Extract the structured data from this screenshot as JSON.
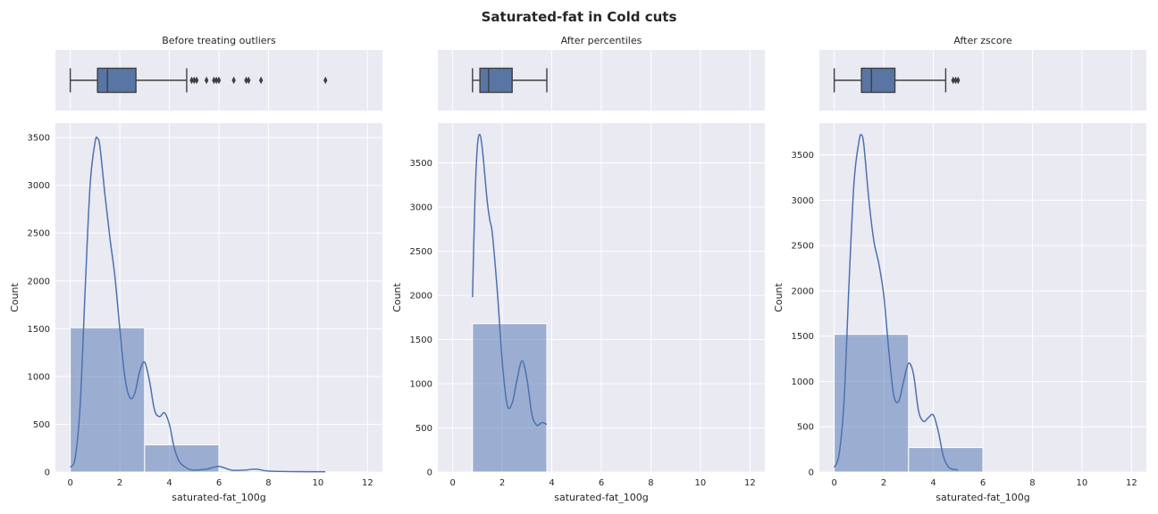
{
  "title": "Saturated-fat in Cold cuts",
  "colors": {
    "bar_fill": "#4c72b0",
    "bar_edge": "#ffffff",
    "kde_line": "#4c72b0",
    "box_fill": "#5975a4",
    "box_edge": "#3f3f3f",
    "panel_bg": "#eaeaf2",
    "grid": "#ffffff"
  },
  "chart_data": [
    {
      "type": "histogram",
      "title": "Before treating outliers",
      "xlabel": "saturated-fat_100g",
      "ylabel": "Count",
      "xlim": [
        -0.6,
        12.6
      ],
      "ylim": [
        0,
        3650
      ],
      "xticks": [
        0,
        2,
        4,
        6,
        8,
        10,
        12
      ],
      "yticks": [
        0,
        500,
        1000,
        1500,
        2000,
        2500,
        3000,
        3500
      ],
      "bins": [
        {
          "x0": 0,
          "x1": 3,
          "count": 1510
        },
        {
          "x0": 3,
          "x1": 6,
          "count": 285
        },
        {
          "x0": 6,
          "x1": 9,
          "count": 12
        },
        {
          "x0": 9,
          "x1": 12,
          "count": 2
        }
      ],
      "kde": {
        "x": [
          0,
          0.2,
          0.4,
          0.6,
          0.8,
          1.0,
          1.1,
          1.2,
          1.4,
          1.6,
          1.8,
          2.0,
          2.2,
          2.4,
          2.6,
          2.8,
          3.0,
          3.2,
          3.4,
          3.6,
          3.8,
          4.0,
          4.2,
          4.4,
          4.6,
          4.8,
          5.0,
          5.5,
          6.0,
          6.5,
          7.0,
          7.5,
          8.0,
          9.0,
          10.3
        ],
        "y": [
          50,
          150,
          700,
          1900,
          3000,
          3450,
          3490,
          3400,
          2900,
          2450,
          2050,
          1500,
          1000,
          780,
          820,
          1050,
          1150,
          950,
          650,
          580,
          620,
          500,
          250,
          110,
          60,
          30,
          20,
          30,
          60,
          20,
          20,
          30,
          10,
          5,
          3
        ]
      },
      "boxplot": {
        "whisker_low": 0,
        "q1": 1.1,
        "median": 1.5,
        "q3": 2.65,
        "whisker_high": 4.7,
        "outliers": [
          4.9,
          5.0,
          5.1,
          5.5,
          5.8,
          5.9,
          6.0,
          6.6,
          7.1,
          7.2,
          7.7,
          10.3
        ]
      }
    },
    {
      "type": "histogram",
      "title": "After percentiles",
      "xlabel": "saturated-fat_100g",
      "ylabel": "Count",
      "xlim": [
        -0.6,
        12.6
      ],
      "ylim": [
        0,
        3950
      ],
      "xticks": [
        0,
        2,
        4,
        6,
        8,
        10,
        12
      ],
      "yticks": [
        0,
        500,
        1000,
        1500,
        2000,
        2500,
        3000,
        3500
      ],
      "bins": [
        {
          "x0": 0.8,
          "x1": 3.8,
          "count": 1680
        }
      ],
      "kde": {
        "x": [
          0.8,
          0.9,
          1.0,
          1.1,
          1.2,
          1.3,
          1.4,
          1.5,
          1.6,
          1.8,
          2.0,
          2.2,
          2.4,
          2.6,
          2.8,
          3.0,
          3.2,
          3.4,
          3.6,
          3.8
        ],
        "y": [
          1980,
          3100,
          3700,
          3820,
          3650,
          3350,
          3050,
          2850,
          2700,
          2050,
          1250,
          760,
          780,
          1050,
          1260,
          1050,
          650,
          530,
          560,
          540
        ]
      },
      "boxplot": {
        "whisker_low": 0.8,
        "q1": 1.1,
        "median": 1.45,
        "q3": 2.4,
        "whisker_high": 3.8,
        "outliers": []
      }
    },
    {
      "type": "histogram",
      "title": "After zscore",
      "xlabel": "saturated-fat_100g",
      "ylabel": "Count",
      "xlim": [
        -0.6,
        12.6
      ],
      "ylim": [
        0,
        3850
      ],
      "xticks": [
        0,
        2,
        4,
        6,
        8,
        10,
        12
      ],
      "yticks": [
        0,
        500,
        1000,
        1500,
        2000,
        2500,
        3000,
        3500
      ],
      "bins": [
        {
          "x0": 0,
          "x1": 3,
          "count": 1520
        },
        {
          "x0": 3,
          "x1": 6,
          "count": 270
        }
      ],
      "kde": {
        "x": [
          0,
          0.2,
          0.4,
          0.6,
          0.8,
          1.0,
          1.1,
          1.2,
          1.4,
          1.6,
          1.8,
          2.0,
          2.2,
          2.4,
          2.6,
          2.8,
          3.0,
          3.2,
          3.4,
          3.6,
          3.8,
          4.0,
          4.2,
          4.4,
          4.6,
          4.8,
          5.0
        ],
        "y": [
          50,
          200,
          800,
          2100,
          3200,
          3650,
          3720,
          3600,
          3000,
          2550,
          2300,
          1950,
          1350,
          850,
          780,
          1000,
          1200,
          1080,
          680,
          560,
          600,
          630,
          450,
          180,
          60,
          30,
          25
        ]
      },
      "boxplot": {
        "whisker_low": 0,
        "q1": 1.1,
        "median": 1.5,
        "q3": 2.45,
        "whisker_high": 4.5,
        "outliers": [
          4.8,
          4.9,
          5.0
        ]
      }
    }
  ]
}
